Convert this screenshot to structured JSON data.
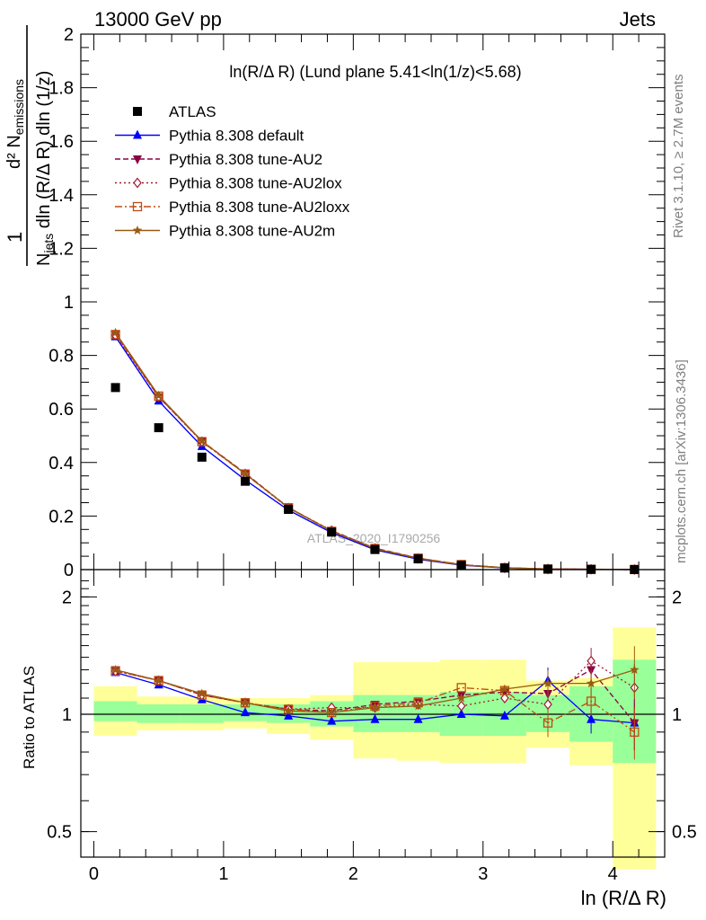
{
  "header": {
    "energy": "13000 GeV pp",
    "category": "Jets"
  },
  "title": "ln(R/Δ R) (Lund plane 5.41<ln(1/z)<5.68)",
  "watermark": "ATLAS_2020_I1790256",
  "side_labels": {
    "rivet": "Rivet 3.1.10, ≥ 2.7M events",
    "mcplots": "mcplots.cern.ch [arXiv:1306.3436]"
  },
  "y_label_top": "1/N_jets d² N_emissions / dln (R/Δ R) dln (1/z)",
  "y_label_bottom": "Ratio to ATLAS",
  "x_label": "ln (R/Δ R)",
  "chart_data": [
    {
      "type": "scatter",
      "panel": "main",
      "xlim": [
        -0.1,
        4.4
      ],
      "ylim": [
        0,
        2
      ],
      "yticks": [
        "0",
        "0.2",
        "0.4",
        "0.6",
        "0.8",
        "1",
        "1.2",
        "1.4",
        "1.6",
        "1.8",
        "2"
      ],
      "x": [
        0.167,
        0.5,
        0.833,
        1.167,
        1.5,
        1.833,
        2.167,
        2.5,
        2.833,
        3.167,
        3.5,
        3.833,
        4.167
      ],
      "series": [
        {
          "name": "ATLAS",
          "color": "#000000",
          "marker": "square",
          "style": "none",
          "values": [
            0.68,
            0.53,
            0.42,
            0.33,
            0.225,
            0.14,
            0.075,
            0.04,
            0.016,
            0.006,
            0.002,
            0.001,
            0.0003
          ]
        },
        {
          "name": "Pythia 8.308 default",
          "color": "#0000ff",
          "marker": "triangle-up",
          "style": "solid",
          "values": [
            0.87,
            0.63,
            0.46,
            0.335,
            0.222,
            0.138,
            0.074,
            0.039,
            0.0165,
            0.006,
            0.0025,
            0.001,
            0.0003
          ]
        },
        {
          "name": "Pythia 8.308 tune-AU2",
          "color": "#8b0045",
          "marker": "triangle-down",
          "style": "dashed",
          "values": [
            0.88,
            0.645,
            0.48,
            0.36,
            0.232,
            0.145,
            0.08,
            0.043,
            0.018,
            0.0068,
            0.0023,
            0.0011,
            0.0003
          ]
        },
        {
          "name": "Pythia 8.308 tune-AU2lox",
          "color": "#a01c35",
          "marker": "diamond",
          "style": "dotted",
          "values": [
            0.875,
            0.645,
            0.478,
            0.358,
            0.23,
            0.146,
            0.079,
            0.042,
            0.017,
            0.0067,
            0.0022,
            0.0014,
            0.0004
          ]
        },
        {
          "name": "Pythia 8.308 tune-AU2loxx",
          "color": "#c04a10",
          "marker": "square-open",
          "style": "dashdot",
          "values": [
            0.878,
            0.648,
            0.478,
            0.357,
            0.231,
            0.143,
            0.079,
            0.043,
            0.019,
            0.007,
            0.0019,
            0.0011,
            0.0003
          ]
        },
        {
          "name": "Pythia 8.308 tune-AU2m",
          "color": "#9a5a10",
          "marker": "star",
          "style": "solid",
          "values": [
            0.885,
            0.65,
            0.48,
            0.358,
            0.232,
            0.144,
            0.078,
            0.042,
            0.0175,
            0.0069,
            0.0025,
            0.0013,
            0.0004
          ]
        }
      ]
    },
    {
      "type": "scatter",
      "panel": "ratio",
      "scale": "log",
      "xlim": [
        -0.1,
        4.4
      ],
      "ylim": [
        0.43,
        2.35
      ],
      "yticks": [
        "0.5",
        "1",
        "2"
      ],
      "xticks": [
        "0",
        "1",
        "2",
        "3",
        "4"
      ],
      "x": [
        0.167,
        0.5,
        0.833,
        1.167,
        1.5,
        1.833,
        2.167,
        2.5,
        2.833,
        3.167,
        3.5,
        3.833,
        4.167
      ],
      "bands": {
        "edges": [
          -0.0,
          0.333,
          0.667,
          1.0,
          1.333,
          1.667,
          2.0,
          2.333,
          2.667,
          3.0,
          3.333,
          3.667,
          4.0,
          4.333
        ],
        "stat_green": [
          [
            0.96,
            1.08
          ],
          [
            0.95,
            1.06
          ],
          [
            0.95,
            1.06
          ],
          [
            0.96,
            1.06
          ],
          [
            0.95,
            1.06
          ],
          [
            0.93,
            1.08
          ],
          [
            0.9,
            1.12
          ],
          [
            0.9,
            1.12
          ],
          [
            0.88,
            1.14
          ],
          [
            0.88,
            1.14
          ],
          [
            0.9,
            1.12
          ],
          [
            0.85,
            1.18
          ],
          [
            0.75,
            1.38
          ]
        ],
        "total_yellow": [
          [
            0.88,
            1.18
          ],
          [
            0.91,
            1.11
          ],
          [
            0.91,
            1.11
          ],
          [
            0.92,
            1.1
          ],
          [
            0.89,
            1.1
          ],
          [
            0.86,
            1.12
          ],
          [
            0.77,
            1.36
          ],
          [
            0.76,
            1.36
          ],
          [
            0.75,
            1.38
          ],
          [
            0.75,
            1.38
          ],
          [
            0.82,
            1.22
          ],
          [
            0.74,
            1.24
          ],
          [
            0.4,
            1.67
          ]
        ]
      },
      "series": [
        {
          "name": "Pythia 8.308 default",
          "color": "#0000ff",
          "marker": "triangle-up",
          "style": "solid",
          "values": [
            1.28,
            1.19,
            1.09,
            1.01,
            0.99,
            0.96,
            0.97,
            0.97,
            1.0,
            0.99,
            1.22,
            0.97,
            0.95
          ]
        },
        {
          "name": "Pythia 8.308 tune-AU2",
          "color": "#8b0045",
          "marker": "triangle-down",
          "style": "dashed",
          "values": [
            1.3,
            1.22,
            1.12,
            1.07,
            1.03,
            1.02,
            1.06,
            1.08,
            1.12,
            1.14,
            1.13,
            1.3,
            0.95
          ]
        },
        {
          "name": "Pythia 8.308 tune-AU2lox",
          "color": "#a01c35",
          "marker": "diamond",
          "style": "dotted",
          "values": [
            1.29,
            1.22,
            1.12,
            1.07,
            1.03,
            1.04,
            1.04,
            1.06,
            1.05,
            1.1,
            1.06,
            1.37,
            1.17
          ]
        },
        {
          "name": "Pythia 8.308 tune-AU2loxx",
          "color": "#c04a10",
          "marker": "square-open",
          "style": "dashdot",
          "values": [
            1.29,
            1.22,
            1.12,
            1.07,
            1.03,
            1.01,
            1.05,
            1.07,
            1.17,
            1.15,
            0.95,
            1.08,
            0.9
          ]
        },
        {
          "name": "Pythia 8.308 tune-AU2m",
          "color": "#9a5a10",
          "marker": "star",
          "style": "solid",
          "values": [
            1.3,
            1.22,
            1.13,
            1.07,
            1.02,
            1.01,
            1.04,
            1.05,
            1.1,
            1.16,
            1.2,
            1.2,
            1.3
          ]
        }
      ]
    }
  ]
}
